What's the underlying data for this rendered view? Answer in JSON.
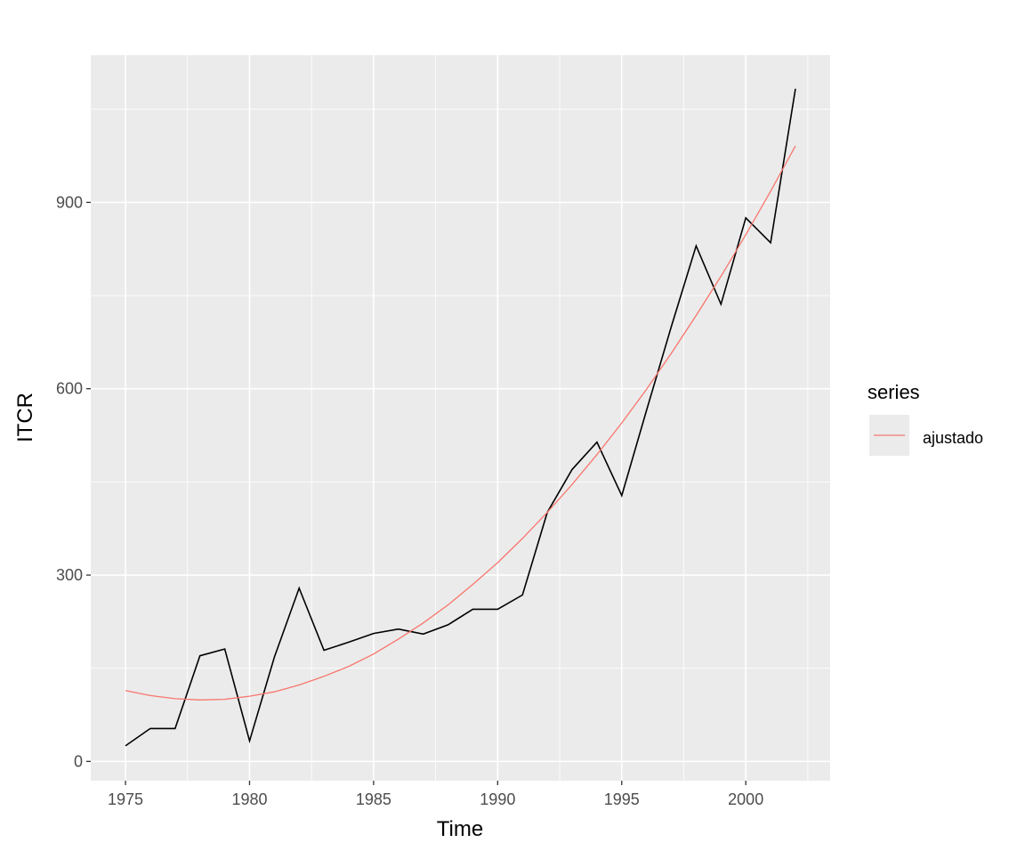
{
  "chart_data": {
    "type": "line",
    "title": "",
    "xlabel": "Time",
    "ylabel": "ITCR",
    "xlim": [
      1973.6,
      2003.4
    ],
    "ylim": [
      -31,
      1137
    ],
    "x_ticks": [
      1975,
      1980,
      1985,
      1990,
      1995,
      2000
    ],
    "y_ticks": [
      0,
      300,
      600,
      900
    ],
    "grid": true,
    "legend": {
      "title": "series",
      "position": "right",
      "entries": [
        {
          "name": "ajustado",
          "color": "#F8766D"
        }
      ]
    },
    "x": [
      1975,
      1976,
      1977,
      1978,
      1979,
      1980,
      1981,
      1982,
      1983,
      1984,
      1985,
      1986,
      1987,
      1988,
      1989,
      1990,
      1991,
      1992,
      1993,
      1994,
      1995,
      1996,
      1997,
      1998,
      1999,
      2000,
      2001,
      2002
    ],
    "series": [
      {
        "color": "#000000",
        "values": [
          25,
          53,
          53,
          170,
          181,
          33,
          168,
          279,
          179,
          192,
          206,
          213,
          205,
          220,
          245,
          245,
          268,
          401,
          470,
          514,
          428,
          565,
          700,
          830,
          736,
          875,
          835,
          1083
        ]
      },
      {
        "name": "ajustado",
        "color": "#F8766D",
        "values": [
          114,
          106,
          101,
          99,
          100,
          105,
          112,
          123,
          137,
          153,
          173,
          197,
          223,
          252,
          285,
          320,
          359,
          401,
          446,
          494,
          545,
          599,
          657,
          718,
          781,
          848,
          918,
          991
        ]
      }
    ]
  }
}
